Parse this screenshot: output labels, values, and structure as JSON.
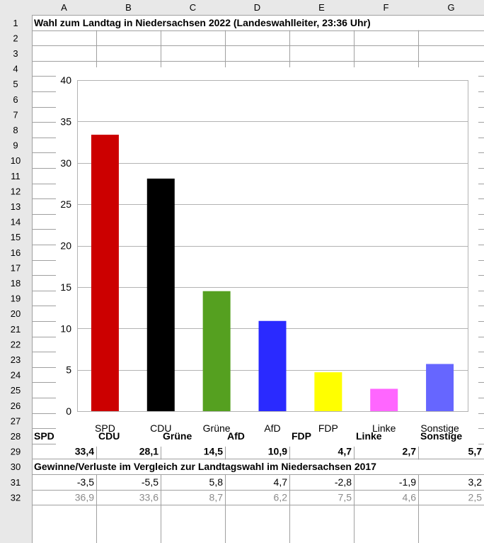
{
  "columns": [
    "A",
    "B",
    "C",
    "D",
    "E",
    "F",
    "G"
  ],
  "rows": [
    "1",
    "2",
    "3",
    "4",
    "5",
    "6",
    "7",
    "8",
    "9",
    "10",
    "11",
    "12",
    "13",
    "14",
    "15",
    "16",
    "17",
    "18",
    "19",
    "20",
    "21",
    "22",
    "23",
    "24",
    "25",
    "26",
    "27",
    "28",
    "29",
    "30",
    "31",
    "32"
  ],
  "title_row": {
    "cells": [
      "Wahl zum",
      "Landtag in",
      "Niedersachsen",
      "2022",
      "(Landeswahlleiter,",
      "23:36",
      "Uhr)"
    ]
  },
  "header_row": [
    "SPD",
    "CDU",
    "Grüne",
    "AfD",
    "FDP",
    "Linke",
    "Sonstige"
  ],
  "values_row": [
    "33,4",
    "28,1",
    "14,5",
    "10,9",
    "4,7",
    "2,7",
    "5,7"
  ],
  "note_row": [
    "Gewinne/Verluste im",
    "Vergleich",
    "zur Landtagswahl im",
    "Niedersachsen 2017"
  ],
  "change_row": [
    "-3,5",
    "-5,5",
    "5,8",
    "4,7",
    "-2,8",
    "-1,9",
    "3,2"
  ],
  "prev_row": [
    "36,9",
    "33,6",
    "8,7",
    "6,2",
    "7,5",
    "4,6",
    "2,5"
  ],
  "chart_data": {
    "type": "bar",
    "title": "",
    "xlabel": "",
    "ylabel": "",
    "categories": [
      "SPD",
      "CDU",
      "Grüne",
      "AfD",
      "FDP",
      "Linke",
      "Sonstige"
    ],
    "values": [
      33.4,
      28.1,
      14.5,
      10.9,
      4.7,
      2.7,
      5.7
    ],
    "colors": [
      "#cc0000",
      "#000000",
      "#55a020",
      "#2a2aff",
      "#ffff00",
      "#ff66ff",
      "#6666ff"
    ],
    "ylim": [
      0,
      40
    ],
    "yticks": [
      "0",
      "5",
      "10",
      "15",
      "20",
      "25",
      "30",
      "35",
      "40"
    ],
    "grid": true,
    "legend": "none"
  }
}
